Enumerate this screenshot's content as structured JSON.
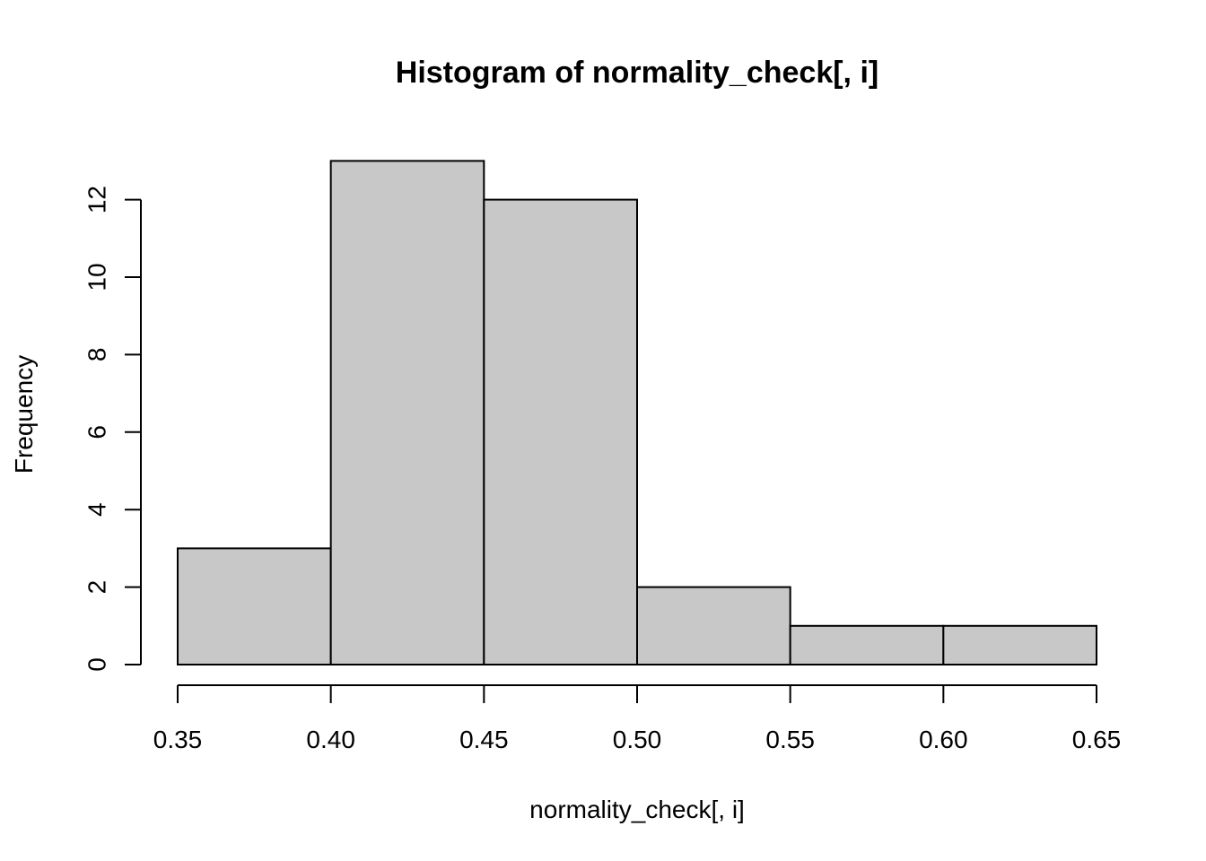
{
  "chart_data": {
    "type": "bar",
    "subtype": "histogram",
    "title": "Histogram of normality_check[, i]",
    "xlabel": "normality_check[, i]",
    "ylabel": "Frequency",
    "bins": [
      {
        "start": 0.35,
        "end": 0.4,
        "count": 3
      },
      {
        "start": 0.4,
        "end": 0.45,
        "count": 13
      },
      {
        "start": 0.45,
        "end": 0.5,
        "count": 12
      },
      {
        "start": 0.5,
        "end": 0.55,
        "count": 2
      },
      {
        "start": 0.55,
        "end": 0.6,
        "count": 1
      },
      {
        "start": 0.6,
        "end": 0.65,
        "count": 1
      }
    ],
    "x_ticks": [
      "0.35",
      "0.40",
      "0.45",
      "0.50",
      "0.55",
      "0.60",
      "0.65"
    ],
    "y_ticks": [
      "0",
      "2",
      "4",
      "6",
      "8",
      "10",
      "12"
    ],
    "xlim": [
      0.35,
      0.65
    ],
    "ylim": [
      0,
      13
    ],
    "grid": false,
    "bar_color": "#c8c8c8",
    "edge_color": "#000000"
  }
}
